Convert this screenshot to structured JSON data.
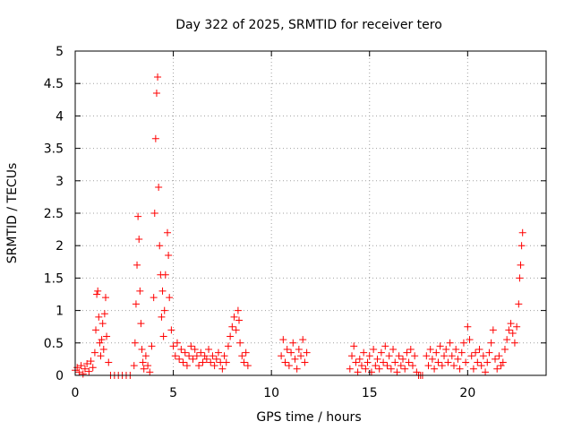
{
  "chart_data": {
    "type": "scatter",
    "title": "Day 322 of 2025, SRMTID for receiver tero",
    "xlabel": "GPS time / hours",
    "ylabel": "SRMTID / TECUs",
    "xlim": [
      0,
      24
    ],
    "ylim": [
      0,
      5
    ],
    "xticks": [
      0,
      5,
      10,
      15,
      20
    ],
    "xtick_labels": [
      "0",
      "5",
      "10",
      "15",
      "20"
    ],
    "yticks": [
      0,
      0.5,
      1,
      1.5,
      2,
      2.5,
      3,
      3.5,
      4,
      4.5,
      5
    ],
    "ytick_labels": [
      "0",
      "0.5",
      "1",
      "1.5",
      "2",
      "2.5",
      "3",
      "3.5",
      "4",
      "4.5",
      "5"
    ],
    "grid": true,
    "marker": "plus",
    "series": [
      {
        "name": "SRMTID",
        "color": "#ff0000",
        "points": [
          [
            0.0,
            0.08
          ],
          [
            0.1,
            0.12
          ],
          [
            0.2,
            0.05
          ],
          [
            0.3,
            0.15
          ],
          [
            0.4,
            0.02
          ],
          [
            0.5,
            0.1
          ],
          [
            0.6,
            0.18
          ],
          [
            0.7,
            0.06
          ],
          [
            0.8,
            0.22
          ],
          [
            0.9,
            0.12
          ],
          [
            1.0,
            0.35
          ],
          [
            1.05,
            0.7
          ],
          [
            1.1,
            1.25
          ],
          [
            1.15,
            1.3
          ],
          [
            1.2,
            0.9
          ],
          [
            1.25,
            0.5
          ],
          [
            1.3,
            0.3
          ],
          [
            1.35,
            0.55
          ],
          [
            1.4,
            0.8
          ],
          [
            1.45,
            0.4
          ],
          [
            1.5,
            0.95
          ],
          [
            1.55,
            1.2
          ],
          [
            1.6,
            0.6
          ],
          [
            1.7,
            0.2
          ],
          [
            1.8,
            0.0
          ],
          [
            2.0,
            0.0
          ],
          [
            2.2,
            0.0
          ],
          [
            2.4,
            0.0
          ],
          [
            2.6,
            0.0
          ],
          [
            2.8,
            0.0
          ],
          [
            3.0,
            0.15
          ],
          [
            3.05,
            0.5
          ],
          [
            3.1,
            1.1
          ],
          [
            3.15,
            1.7
          ],
          [
            3.2,
            2.45
          ],
          [
            3.25,
            2.1
          ],
          [
            3.3,
            1.3
          ],
          [
            3.35,
            0.8
          ],
          [
            3.4,
            0.4
          ],
          [
            3.45,
            0.2
          ],
          [
            3.5,
            0.1
          ],
          [
            3.6,
            0.3
          ],
          [
            3.7,
            0.15
          ],
          [
            3.8,
            0.05
          ],
          [
            3.9,
            0.45
          ],
          [
            4.0,
            1.2
          ],
          [
            4.05,
            2.5
          ],
          [
            4.1,
            3.65
          ],
          [
            4.15,
            4.35
          ],
          [
            4.2,
            4.6
          ],
          [
            4.25,
            2.9
          ],
          [
            4.3,
            2.0
          ],
          [
            4.35,
            1.55
          ],
          [
            4.4,
            0.9
          ],
          [
            4.45,
            1.3
          ],
          [
            4.5,
            0.6
          ],
          [
            4.55,
            1.0
          ],
          [
            4.6,
            1.55
          ],
          [
            4.7,
            2.2
          ],
          [
            4.75,
            1.85
          ],
          [
            4.8,
            1.2
          ],
          [
            4.9,
            0.7
          ],
          [
            5.0,
            0.45
          ],
          [
            5.1,
            0.3
          ],
          [
            5.2,
            0.5
          ],
          [
            5.3,
            0.25
          ],
          [
            5.4,
            0.4
          ],
          [
            5.5,
            0.2
          ],
          [
            5.6,
            0.35
          ],
          [
            5.7,
            0.15
          ],
          [
            5.8,
            0.3
          ],
          [
            5.9,
            0.45
          ],
          [
            6.0,
            0.25
          ],
          [
            6.1,
            0.4
          ],
          [
            6.2,
            0.3
          ],
          [
            6.3,
            0.15
          ],
          [
            6.4,
            0.35
          ],
          [
            6.5,
            0.2
          ],
          [
            6.6,
            0.3
          ],
          [
            6.7,
            0.25
          ],
          [
            6.8,
            0.4
          ],
          [
            6.9,
            0.2
          ],
          [
            7.0,
            0.3
          ],
          [
            7.1,
            0.15
          ],
          [
            7.2,
            0.25
          ],
          [
            7.3,
            0.35
          ],
          [
            7.4,
            0.2
          ],
          [
            7.5,
            0.1
          ],
          [
            7.6,
            0.3
          ],
          [
            7.7,
            0.2
          ],
          [
            7.8,
            0.45
          ],
          [
            7.9,
            0.6
          ],
          [
            8.0,
            0.75
          ],
          [
            8.1,
            0.9
          ],
          [
            8.2,
            0.7
          ],
          [
            8.3,
            1.0
          ],
          [
            8.35,
            0.85
          ],
          [
            8.4,
            0.5
          ],
          [
            8.5,
            0.3
          ],
          [
            8.6,
            0.2
          ],
          [
            8.7,
            0.35
          ],
          [
            8.8,
            0.15
          ],
          [
            10.5,
            0.3
          ],
          [
            10.6,
            0.55
          ],
          [
            10.7,
            0.2
          ],
          [
            10.8,
            0.4
          ],
          [
            10.9,
            0.15
          ],
          [
            11.0,
            0.35
          ],
          [
            11.1,
            0.5
          ],
          [
            11.2,
            0.25
          ],
          [
            11.3,
            0.1
          ],
          [
            11.4,
            0.4
          ],
          [
            11.5,
            0.3
          ],
          [
            11.6,
            0.55
          ],
          [
            11.7,
            0.2
          ],
          [
            11.8,
            0.35
          ],
          [
            14.0,
            0.1
          ],
          [
            14.1,
            0.3
          ],
          [
            14.2,
            0.45
          ],
          [
            14.3,
            0.2
          ],
          [
            14.4,
            0.05
          ],
          [
            14.5,
            0.25
          ],
          [
            14.6,
            0.15
          ],
          [
            14.7,
            0.35
          ],
          [
            14.8,
            0.1
          ],
          [
            14.9,
            0.2
          ],
          [
            15.0,
            0.3
          ],
          [
            15.1,
            0.05
          ],
          [
            15.2,
            0.4
          ],
          [
            15.3,
            0.15
          ],
          [
            15.4,
            0.25
          ],
          [
            15.5,
            0.1
          ],
          [
            15.6,
            0.35
          ],
          [
            15.7,
            0.2
          ],
          [
            15.8,
            0.45
          ],
          [
            15.9,
            0.15
          ],
          [
            16.0,
            0.3
          ],
          [
            16.1,
            0.1
          ],
          [
            16.2,
            0.4
          ],
          [
            16.3,
            0.2
          ],
          [
            16.4,
            0.05
          ],
          [
            16.5,
            0.3
          ],
          [
            16.6,
            0.15
          ],
          [
            16.7,
            0.25
          ],
          [
            16.8,
            0.1
          ],
          [
            16.9,
            0.35
          ],
          [
            17.0,
            0.2
          ],
          [
            17.1,
            0.4
          ],
          [
            17.2,
            0.15
          ],
          [
            17.3,
            0.3
          ],
          [
            17.4,
            0.05
          ],
          [
            17.5,
            0.0
          ],
          [
            17.6,
            0.0
          ],
          [
            17.7,
            0.0
          ],
          [
            17.9,
            0.3
          ],
          [
            18.0,
            0.15
          ],
          [
            18.1,
            0.4
          ],
          [
            18.2,
            0.25
          ],
          [
            18.3,
            0.1
          ],
          [
            18.4,
            0.35
          ],
          [
            18.5,
            0.2
          ],
          [
            18.6,
            0.45
          ],
          [
            18.7,
            0.15
          ],
          [
            18.8,
            0.3
          ],
          [
            18.9,
            0.4
          ],
          [
            19.0,
            0.2
          ],
          [
            19.1,
            0.5
          ],
          [
            19.2,
            0.3
          ],
          [
            19.3,
            0.15
          ],
          [
            19.4,
            0.4
          ],
          [
            19.5,
            0.25
          ],
          [
            19.6,
            0.1
          ],
          [
            19.7,
            0.35
          ],
          [
            19.8,
            0.5
          ],
          [
            19.9,
            0.2
          ],
          [
            20.0,
            0.75
          ],
          [
            20.1,
            0.55
          ],
          [
            20.2,
            0.3
          ],
          [
            20.3,
            0.1
          ],
          [
            20.4,
            0.35
          ],
          [
            20.5,
            0.2
          ],
          [
            20.6,
            0.4
          ],
          [
            20.7,
            0.15
          ],
          [
            20.8,
            0.3
          ],
          [
            20.9,
            0.05
          ],
          [
            21.0,
            0.2
          ],
          [
            21.1,
            0.35
          ],
          [
            21.2,
            0.5
          ],
          [
            21.3,
            0.7
          ],
          [
            21.4,
            0.25
          ],
          [
            21.5,
            0.1
          ],
          [
            21.6,
            0.3
          ],
          [
            21.7,
            0.15
          ],
          [
            21.8,
            0.2
          ],
          [
            21.9,
            0.4
          ],
          [
            22.0,
            0.55
          ],
          [
            22.1,
            0.7
          ],
          [
            22.2,
            0.8
          ],
          [
            22.3,
            0.65
          ],
          [
            22.4,
            0.5
          ],
          [
            22.5,
            0.75
          ],
          [
            22.6,
            1.1
          ],
          [
            22.65,
            1.5
          ],
          [
            22.7,
            1.7
          ],
          [
            22.75,
            2.0
          ],
          [
            22.8,
            2.2
          ]
        ]
      }
    ]
  }
}
